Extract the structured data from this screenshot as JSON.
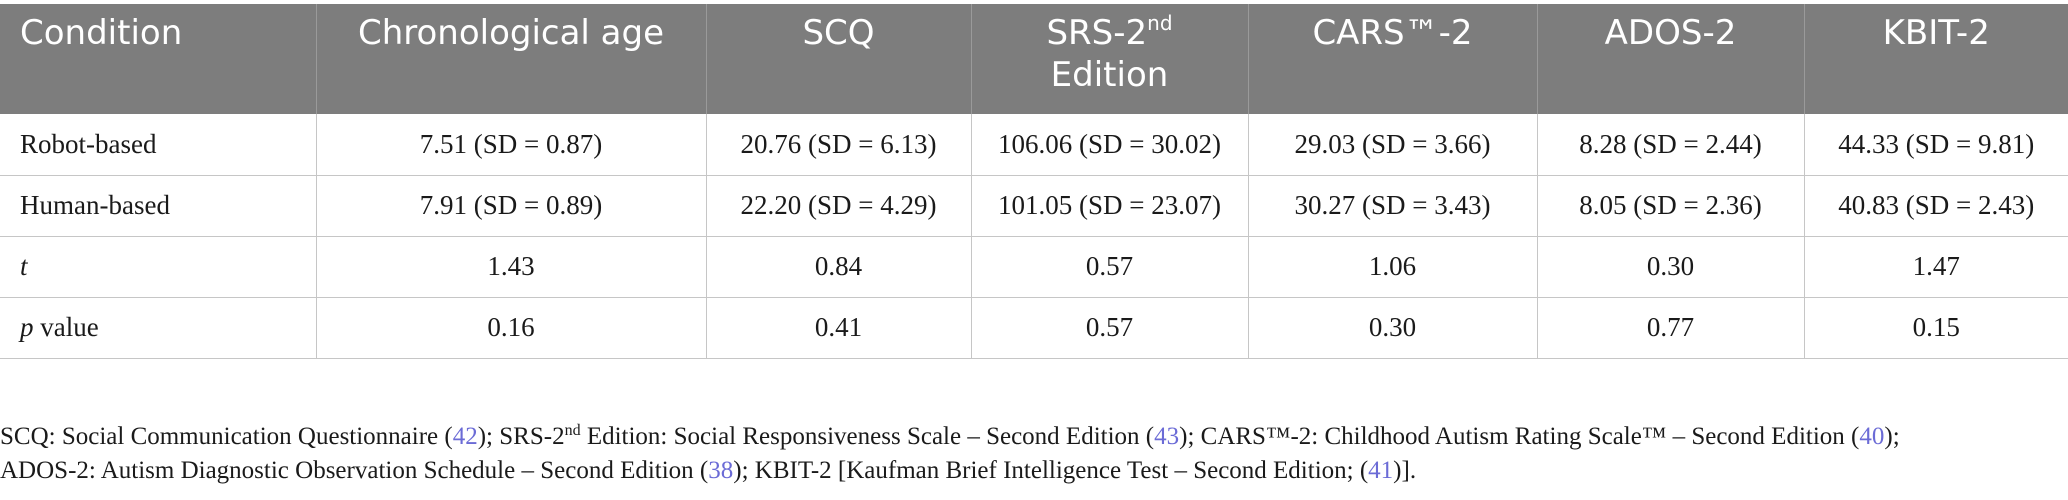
{
  "table": {
    "headers": {
      "condition": "Condition",
      "chronological_age": "Chronological age",
      "scq": "SCQ",
      "srs_pre": "SRS-2",
      "srs_sup": "nd",
      "srs_post": "Edition",
      "cars": "CARS™-2",
      "ados": "ADOS-2",
      "kbit": "KBIT-2"
    },
    "rows": [
      {
        "label_pre": "Robot-based",
        "label_rest": "",
        "cells": [
          "7.51 (SD = 0.87)",
          "20.76 (SD = 6.13)",
          "106.06 (SD = 30.02)",
          "29.03 (SD = 3.66)",
          "8.28 (SD = 2.44)",
          "44.33 (SD = 9.81)"
        ]
      },
      {
        "label_pre": "Human-based",
        "label_rest": "",
        "cells": [
          "7.91 (SD = 0.89)",
          "22.20 (SD = 4.29)",
          "101.05 (SD = 23.07)",
          "30.27 (SD = 3.43)",
          "8.05 (SD = 2.36)",
          "40.83 (SD = 2.43)"
        ]
      },
      {
        "label_italic": "t",
        "label_rest": "",
        "cells": [
          "1.43",
          "0.84",
          "0.57",
          "1.06",
          "0.30",
          "1.47"
        ]
      },
      {
        "label_italic": "p",
        "label_rest": " value",
        "cells": [
          "0.16",
          "0.41",
          "0.57",
          "0.30",
          "0.77",
          "0.15"
        ]
      }
    ]
  },
  "footnote": {
    "line1_a": "SCQ: Social Communication Questionnaire (",
    "ref_42": "42",
    "line1_b": "); SRS-2",
    "nd": "nd",
    "line1_c": " Edition: Social Responsiveness Scale – Second Edition (",
    "ref_43": "43",
    "line1_d": "); CARS™-2: Childhood Autism Rating Scale™ – Second Edition (",
    "ref_40": "40",
    "line1_e": ");",
    "line2_a": "ADOS-2: Autism Diagnostic Observation Schedule – Second Edition (",
    "ref_38": "38",
    "line2_b": "); KBIT-2 [Kaufman Brief Intelligence Test – Second Edition; (",
    "ref_41": "41",
    "line2_c": ")]."
  }
}
